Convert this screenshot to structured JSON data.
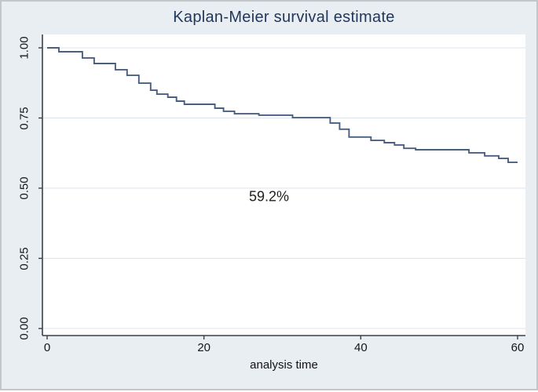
{
  "window": {
    "background_color": "#e9eef3",
    "border_color": "#c3c7cb",
    "plot_background_color": "#ffffff"
  },
  "chart_data": {
    "type": "line",
    "subtype": "step",
    "title": "Kaplan-Meier survival estimate",
    "title_color": "#22375d",
    "xlabel": "analysis time",
    "ylabel": "",
    "xlim": [
      0,
      61
    ],
    "ylim": [
      0.0,
      1.0
    ],
    "grid": "horizontal",
    "grid_color": "#dde5ec",
    "axis_color": "#3c4148",
    "legend_position": "none",
    "xticks": [
      {
        "label": "0",
        "value": 0
      },
      {
        "label": "20",
        "value": 20
      },
      {
        "label": "40",
        "value": 40
      },
      {
        "label": "60",
        "value": 60
      }
    ],
    "yticks": [
      {
        "label": "0.00",
        "value": 0.0
      },
      {
        "label": "0.25",
        "value": 0.25
      },
      {
        "label": "0.50",
        "value": 0.5
      },
      {
        "label": "0.75",
        "value": 0.75
      },
      {
        "label": "1.00",
        "value": 1.0
      }
    ],
    "series": [
      {
        "name": "Kaplan-Meier survival estimate",
        "color": "#4a5f80",
        "end_time": 60,
        "points": [
          [
            0,
            1.0
          ],
          [
            1.5,
            0.986
          ],
          [
            4.5,
            0.964
          ],
          [
            6,
            0.944
          ],
          [
            8.7,
            0.922
          ],
          [
            10.2,
            0.902
          ],
          [
            11.7,
            0.874
          ],
          [
            13.2,
            0.849
          ],
          [
            14,
            0.835
          ],
          [
            15.4,
            0.824
          ],
          [
            16.5,
            0.81
          ],
          [
            17.5,
            0.799
          ],
          [
            21.4,
            0.785
          ],
          [
            22.5,
            0.774
          ],
          [
            23.9,
            0.765
          ],
          [
            27,
            0.76
          ],
          [
            31.3,
            0.751
          ],
          [
            36.1,
            0.732
          ],
          [
            37.3,
            0.71
          ],
          [
            38.5,
            0.682
          ],
          [
            41.3,
            0.67
          ],
          [
            43,
            0.662
          ],
          [
            44.3,
            0.654
          ],
          [
            45.5,
            0.642
          ],
          [
            47,
            0.637
          ],
          [
            53.8,
            0.626
          ],
          [
            55.8,
            0.615
          ],
          [
            57.6,
            0.606
          ],
          [
            58.8,
            0.592
          ]
        ]
      }
    ],
    "annotations": [
      {
        "text": "59.2%",
        "x": 28.3,
        "y": 0.47,
        "color": "#1f1f1f"
      }
    ]
  }
}
